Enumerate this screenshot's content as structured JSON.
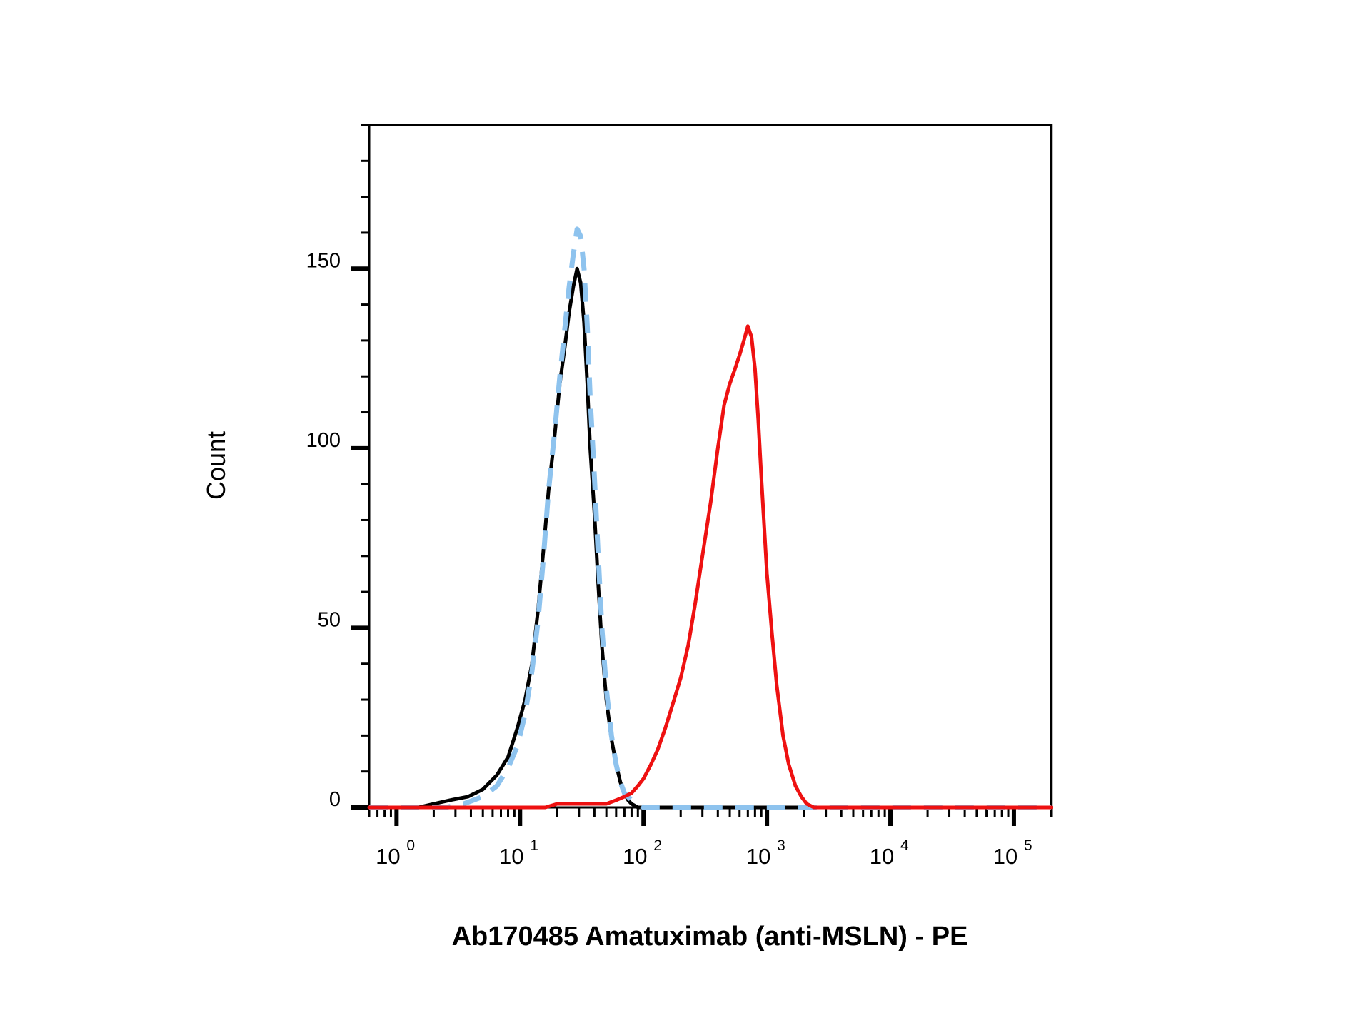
{
  "chart_data": {
    "type": "line",
    "title": "",
    "xlabel": "Ab170485 Amatuximab (anti-MSLN) - PE",
    "ylabel": "Count",
    "xscale": "log",
    "xlim": [
      0.6,
      200000
    ],
    "ylim": [
      0,
      190
    ],
    "grid": false,
    "legend": "none",
    "yticks": [
      0,
      50,
      100,
      150
    ],
    "ytick_labels": [
      "0",
      "50",
      "100",
      "150"
    ],
    "xticks": [
      1,
      10,
      100,
      1000,
      10000,
      100000
    ],
    "xtick_labels": [
      {
        "base": "10",
        "exp": "0"
      },
      {
        "base": "10",
        "exp": "1"
      },
      {
        "base": "10",
        "exp": "2"
      },
      {
        "base": "10",
        "exp": "3"
      },
      {
        "base": "10",
        "exp": "4"
      },
      {
        "base": "10",
        "exp": "5"
      }
    ],
    "series": [
      {
        "style": "solid",
        "color": "#000000",
        "x": [
          0.6,
          1.5,
          2.0,
          2.7,
          3.8,
          5.0,
          6.5,
          8.0,
          9.5,
          11,
          12.5,
          14,
          15.5,
          17,
          19,
          21,
          23,
          25,
          27,
          29,
          31,
          33,
          35,
          37,
          40,
          43,
          46,
          50,
          55,
          60,
          65,
          70,
          75,
          80,
          90,
          100,
          115,
          130,
          150,
          180,
          250,
          500,
          1000,
          5000,
          20000,
          200000
        ],
        "y": [
          0,
          0,
          1,
          2,
          3,
          5,
          9,
          14,
          22,
          30,
          40,
          55,
          72,
          88,
          103,
          118,
          128,
          138,
          145,
          150,
          146,
          135,
          118,
          100,
          82,
          62,
          45,
          30,
          19,
          12,
          7,
          4,
          2,
          1,
          0,
          0,
          0,
          0,
          0,
          0,
          0,
          0,
          0,
          0,
          0,
          0
        ]
      },
      {
        "style": "dashed",
        "color": "#8ec3ee",
        "x": [
          0.6,
          2.5,
          3.5,
          5.0,
          6.5,
          8.0,
          9.5,
          11,
          12.5,
          14,
          15.5,
          17,
          19,
          21,
          23,
          25,
          27,
          29,
          31,
          33,
          35,
          37,
          40,
          43,
          46,
          50,
          55,
          60,
          65,
          70,
          80,
          90,
          100,
          130,
          200,
          1000,
          5000,
          200000
        ],
        "y": [
          0,
          0,
          1,
          3,
          6,
          11,
          17,
          26,
          38,
          52,
          70,
          88,
          104,
          120,
          133,
          145,
          154,
          161,
          159,
          150,
          134,
          114,
          92,
          70,
          50,
          33,
          20,
          12,
          7,
          4,
          2,
          1,
          0,
          0,
          0,
          0,
          0,
          0
        ]
      },
      {
        "style": "solid",
        "color": "#ee1111",
        "x": [
          0.6,
          8,
          12,
          16,
          20,
          25,
          30,
          40,
          50,
          60,
          70,
          80,
          90,
          100,
          115,
          130,
          150,
          170,
          200,
          230,
          260,
          300,
          350,
          400,
          450,
          500,
          550,
          600,
          650,
          700,
          750,
          800,
          850,
          900,
          950,
          1000,
          1100,
          1200,
          1350,
          1500,
          1700,
          1900,
          2100,
          2400,
          2800,
          3300,
          4000,
          6000,
          20000,
          200000
        ],
        "y": [
          0,
          0,
          0,
          0,
          1,
          1,
          1,
          1,
          1,
          2,
          3,
          4,
          6,
          8,
          12,
          16,
          22,
          28,
          36,
          45,
          56,
          70,
          85,
          100,
          112,
          118,
          122,
          126,
          130,
          134,
          131,
          122,
          108,
          92,
          78,
          65,
          48,
          34,
          20,
          12,
          6,
          3,
          1,
          0,
          0,
          0,
          0,
          0,
          0,
          0
        ]
      }
    ]
  }
}
